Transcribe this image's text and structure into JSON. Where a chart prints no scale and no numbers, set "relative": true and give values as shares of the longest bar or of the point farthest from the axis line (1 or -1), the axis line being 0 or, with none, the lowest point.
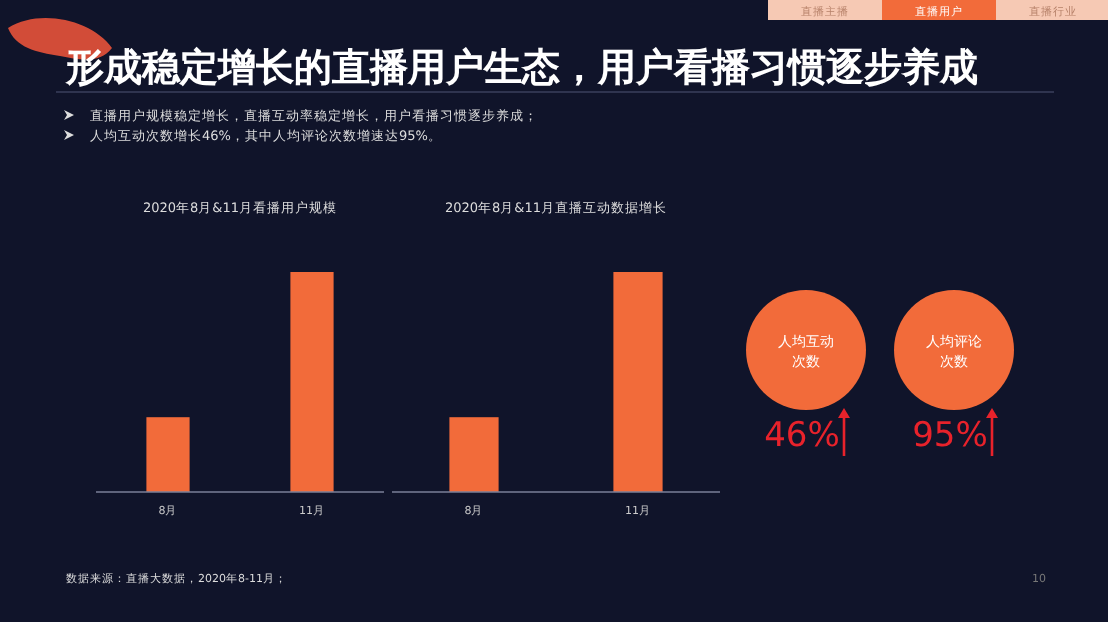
{
  "chart_data": [
    {
      "type": "other",
      "title": "形成稳定增长的直播用户生态，用户看播习惯逐步养成",
      "annotations": [
        "直播主播",
        "直播用户",
        "直播行业",
        "直播用户规模稳定增长，直播互动率稳定增长，用户看播习惯逐步养成；",
        "人均互动次数增长46%，其中人均评论次数增速达95%。",
        "数据来源：直播大数据，2020年8-11月；",
        "10"
      ]
    },
    {
      "type": "bar",
      "title": "2020年8月&11月看播用户规模",
      "categories": [
        "8月",
        "11月"
      ],
      "values": [
        0.34,
        1
      ],
      "color": "#f26b3a",
      "relative": true
    },
    {
      "type": "bar",
      "title": "2020年8月&11月直播互动数据增长",
      "categories": [
        "8月",
        "11月"
      ],
      "values": [
        0.34,
        1
      ],
      "color": "#f26b3a",
      "relative": true
    },
    {
      "type": "other",
      "annotations": [
        "人均互动次数",
        "46%",
        "人均评论次数",
        "95%"
      ]
    }
  ]
}
